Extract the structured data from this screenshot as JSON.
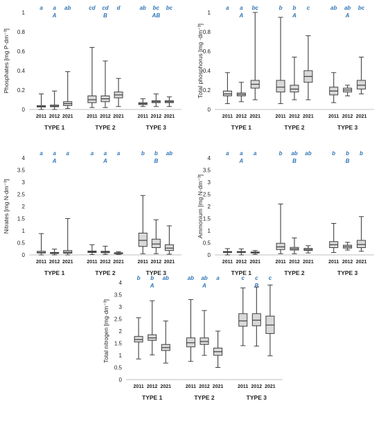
{
  "theme": {
    "letter_color": "#2e75b6",
    "box_fill": "#d9d9d9",
    "line_color": "#404040",
    "axis_color": "#bfbfbf"
  },
  "chart_data": [
    {
      "type": "boxplot",
      "ylabel": "Phosphates [mg P·dm⁻³]",
      "ylim": [
        0,
        1
      ],
      "yticks": [
        0,
        0.2,
        0.4,
        0.6,
        0.8,
        1
      ],
      "ytick_labels": [
        "0",
        "0.2",
        "0.4",
        "0.6",
        "0.8",
        "1"
      ],
      "groups": [
        {
          "name": "TYPE 1",
          "group_letter": "A",
          "boxes": [
            {
              "year": "2011",
              "letter": "a",
              "min": 0.0,
              "q1": 0.025,
              "median": 0.03,
              "q3": 0.04,
              "max": 0.16
            },
            {
              "year": "2012",
              "letter": "a",
              "min": 0.0,
              "q1": 0.028,
              "median": 0.035,
              "q3": 0.045,
              "max": 0.19
            },
            {
              "year": "2021",
              "letter": "ab",
              "min": 0.01,
              "q1": 0.04,
              "median": 0.06,
              "q3": 0.08,
              "max": 0.39
            }
          ]
        },
        {
          "name": "TYPE 2",
          "group_letter": "B",
          "boxes": [
            {
              "year": "2011",
              "letter": "cd",
              "min": 0.02,
              "q1": 0.07,
              "median": 0.1,
              "q3": 0.14,
              "max": 0.64
            },
            {
              "year": "2012",
              "letter": "cd",
              "min": 0.02,
              "q1": 0.08,
              "median": 0.11,
              "q3": 0.14,
              "max": 0.5
            },
            {
              "year": "2021",
              "letter": "d",
              "min": 0.03,
              "q1": 0.12,
              "median": 0.15,
              "q3": 0.18,
              "max": 0.32
            }
          ]
        },
        {
          "name": "TYPE 3",
          "group_letter": "AB",
          "boxes": [
            {
              "year": "2011",
              "letter": "ab",
              "min": 0.03,
              "q1": 0.05,
              "median": 0.06,
              "q3": 0.07,
              "max": 0.11
            },
            {
              "year": "2012",
              "letter": "bc",
              "min": 0.03,
              "q1": 0.07,
              "median": 0.08,
              "q3": 0.09,
              "max": 0.16
            },
            {
              "year": "2021",
              "letter": "bc",
              "min": 0.03,
              "q1": 0.07,
              "median": 0.08,
              "q3": 0.09,
              "max": 0.13
            }
          ]
        }
      ]
    },
    {
      "type": "boxplot",
      "ylabel": "Total phosphorus [mg ·dm⁻³]",
      "ylim": [
        0,
        1
      ],
      "yticks": [
        0,
        0.2,
        0.4,
        0.6,
        0.8,
        1
      ],
      "ytick_labels": [
        "0",
        "0.2",
        "0.4",
        "0.6",
        "0.8",
        "1"
      ],
      "groups": [
        {
          "name": "TYPE 1",
          "group_letter": "A",
          "boxes": [
            {
              "year": "2011",
              "letter": "a",
              "min": 0.06,
              "q1": 0.14,
              "median": 0.16,
              "q3": 0.19,
              "max": 0.38
            },
            {
              "year": "2012",
              "letter": "a",
              "min": 0.08,
              "q1": 0.14,
              "median": 0.155,
              "q3": 0.17,
              "max": 0.28
            },
            {
              "year": "2021",
              "letter": "bc",
              "min": 0.1,
              "q1": 0.22,
              "median": 0.26,
              "q3": 0.3,
              "max": 1.0
            }
          ]
        },
        {
          "name": "TYPE 2",
          "group_letter": "A",
          "boxes": [
            {
              "year": "2011",
              "letter": "b",
              "min": 0.06,
              "q1": 0.18,
              "median": 0.23,
              "q3": 0.3,
              "max": 0.95
            },
            {
              "year": "2012",
              "letter": "b",
              "min": 0.1,
              "q1": 0.18,
              "median": 0.21,
              "q3": 0.25,
              "max": 0.54
            },
            {
              "year": "2021",
              "letter": "c",
              "min": 0.1,
              "q1": 0.28,
              "median": 0.34,
              "q3": 0.4,
              "max": 0.76
            }
          ]
        },
        {
          "name": "TYPE 3",
          "group_letter": "A",
          "boxes": [
            {
              "year": "2011",
              "letter": "ab",
              "min": 0.07,
              "q1": 0.15,
              "median": 0.19,
              "q3": 0.23,
              "max": 0.38
            },
            {
              "year": "2012",
              "letter": "ab",
              "min": 0.14,
              "q1": 0.18,
              "median": 0.2,
              "q3": 0.22,
              "max": 0.25
            },
            {
              "year": "2021",
              "letter": "bc",
              "min": 0.16,
              "q1": 0.21,
              "median": 0.25,
              "q3": 0.3,
              "max": 0.54
            }
          ]
        }
      ]
    },
    {
      "type": "boxplot",
      "ylabel": "Nitrates [mg N·dm⁻³]",
      "ylim": [
        0,
        4
      ],
      "yticks": [
        0,
        0.5,
        1,
        1.5,
        2,
        2.5,
        3,
        3.5,
        4
      ],
      "ytick_labels": [
        "0",
        "0.5",
        "1",
        "1.5",
        "2",
        "2.5",
        "3",
        "3.5",
        "4"
      ],
      "groups": [
        {
          "name": "TYPE 1",
          "group_letter": "A",
          "boxes": [
            {
              "year": "2011",
              "letter": "a",
              "min": 0.0,
              "q1": 0.08,
              "median": 0.1,
              "q3": 0.15,
              "max": 0.88
            },
            {
              "year": "2012",
              "letter": "a",
              "min": 0.0,
              "q1": 0.06,
              "median": 0.08,
              "q3": 0.1,
              "max": 0.24
            },
            {
              "year": "2021",
              "letter": "a",
              "min": 0.0,
              "q1": 0.07,
              "median": 0.11,
              "q3": 0.18,
              "max": 1.5
            }
          ]
        },
        {
          "name": "TYPE 2",
          "group_letter": "A",
          "boxes": [
            {
              "year": "2011",
              "letter": "a",
              "min": 0.02,
              "q1": 0.1,
              "median": 0.13,
              "q3": 0.16,
              "max": 0.42
            },
            {
              "year": "2012",
              "letter": "a",
              "min": 0.02,
              "q1": 0.09,
              "median": 0.12,
              "q3": 0.15,
              "max": 0.36
            },
            {
              "year": "2021",
              "letter": "a",
              "min": 0.02,
              "q1": 0.07,
              "median": 0.08,
              "q3": 0.09,
              "max": 0.13
            }
          ]
        },
        {
          "name": "TYPE 3",
          "group_letter": "B",
          "boxes": [
            {
              "year": "2011",
              "letter": "b",
              "min": 0.05,
              "q1": 0.35,
              "median": 0.6,
              "q3": 0.9,
              "max": 2.45
            },
            {
              "year": "2012",
              "letter": "b",
              "min": 0.05,
              "q1": 0.3,
              "median": 0.45,
              "q3": 0.65,
              "max": 1.45
            },
            {
              "year": "2021",
              "letter": "ab",
              "min": 0.03,
              "q1": 0.18,
              "median": 0.28,
              "q3": 0.42,
              "max": 1.2
            }
          ]
        }
      ]
    },
    {
      "type": "boxplot",
      "ylabel": "Ammonium [mg N·dm⁻³]",
      "ylim": [
        0,
        4
      ],
      "yticks": [
        0,
        0.5,
        1,
        1.5,
        2,
        2.5,
        3,
        3.5,
        4
      ],
      "ytick_labels": [
        "0",
        "0.5",
        "1",
        "1.5",
        "2",
        "2.5",
        "3",
        "3.5",
        "4"
      ],
      "groups": [
        {
          "name": "TYPE 1",
          "group_letter": "A",
          "boxes": [
            {
              "year": "2011",
              "letter": "a",
              "min": 0.0,
              "q1": 0.1,
              "median": 0.12,
              "q3": 0.14,
              "max": 0.26
            },
            {
              "year": "2012",
              "letter": "a",
              "min": 0.0,
              "q1": 0.1,
              "median": 0.12,
              "q3": 0.14,
              "max": 0.25
            },
            {
              "year": "2021",
              "letter": "a",
              "min": 0.02,
              "q1": 0.08,
              "median": 0.1,
              "q3": 0.12,
              "max": 0.18
            }
          ]
        },
        {
          "name": "TYPE 2",
          "group_letter": "B",
          "boxes": [
            {
              "year": "2011",
              "letter": "b",
              "min": 0.05,
              "q1": 0.22,
              "median": 0.33,
              "q3": 0.48,
              "max": 2.1
            },
            {
              "year": "2012",
              "letter": "ab",
              "min": 0.05,
              "q1": 0.2,
              "median": 0.25,
              "q3": 0.31,
              "max": 0.7
            },
            {
              "year": "2021",
              "letter": "ab",
              "min": 0.08,
              "q1": 0.18,
              "median": 0.22,
              "q3": 0.27,
              "max": 0.38
            }
          ]
        },
        {
          "name": "TYPE 3",
          "group_letter": "B",
          "boxes": [
            {
              "year": "2011",
              "letter": "b",
              "min": 0.1,
              "q1": 0.3,
              "median": 0.42,
              "q3": 0.55,
              "max": 1.3
            },
            {
              "year": "2012",
              "letter": "b",
              "min": 0.2,
              "q1": 0.28,
              "median": 0.34,
              "q3": 0.4,
              "max": 0.52
            },
            {
              "year": "2021",
              "letter": "b",
              "min": 0.15,
              "q1": 0.3,
              "median": 0.43,
              "q3": 0.6,
              "max": 1.58
            }
          ]
        }
      ]
    },
    {
      "type": "boxplot",
      "ylabel": "Total nitrogen [mg·dm⁻³]",
      "ylim": [
        0,
        4
      ],
      "yticks": [
        0,
        0.5,
        1,
        1.5,
        2,
        2.5,
        3,
        3.5,
        4
      ],
      "ytick_labels": [
        "0",
        "0.5",
        "1",
        "1.5",
        "2",
        "2.5",
        "3",
        "3.5",
        "4"
      ],
      "groups": [
        {
          "name": "TYPE 1",
          "group_letter": "A",
          "boxes": [
            {
              "year": "2011",
              "letter": "b",
              "min": 0.85,
              "q1": 1.55,
              "median": 1.65,
              "q3": 1.78,
              "max": 2.55
            },
            {
              "year": "2012",
              "letter": "b",
              "min": 1.02,
              "q1": 1.62,
              "median": 1.72,
              "q3": 1.85,
              "max": 3.25
            },
            {
              "year": "2021",
              "letter": "ab",
              "min": 0.68,
              "q1": 1.2,
              "median": 1.32,
              "q3": 1.45,
              "max": 2.42
            }
          ]
        },
        {
          "name": "TYPE 2",
          "group_letter": "A",
          "boxes": [
            {
              "year": "2011",
              "letter": "ab",
              "min": 0.75,
              "q1": 1.35,
              "median": 1.52,
              "q3": 1.72,
              "max": 3.3
            },
            {
              "year": "2012",
              "letter": "ab",
              "min": 1.0,
              "q1": 1.45,
              "median": 1.57,
              "q3": 1.72,
              "max": 2.85
            },
            {
              "year": "2021",
              "letter": "a",
              "min": 0.5,
              "q1": 1.0,
              "median": 1.15,
              "q3": 1.3,
              "max": 2.0
            }
          ]
        },
        {
          "name": "TYPE 3",
          "group_letter": "B",
          "boxes": [
            {
              "year": "2011",
              "letter": "c",
              "min": 1.4,
              "q1": 2.2,
              "median": 2.42,
              "q3": 2.72,
              "max": 3.78
            },
            {
              "year": "2012",
              "letter": "c",
              "min": 1.38,
              "q1": 2.22,
              "median": 2.45,
              "q3": 2.72,
              "max": 3.82
            },
            {
              "year": "2021",
              "letter": "c",
              "min": 0.98,
              "q1": 1.9,
              "median": 2.25,
              "q3": 2.62,
              "max": 3.9
            }
          ]
        }
      ]
    }
  ]
}
